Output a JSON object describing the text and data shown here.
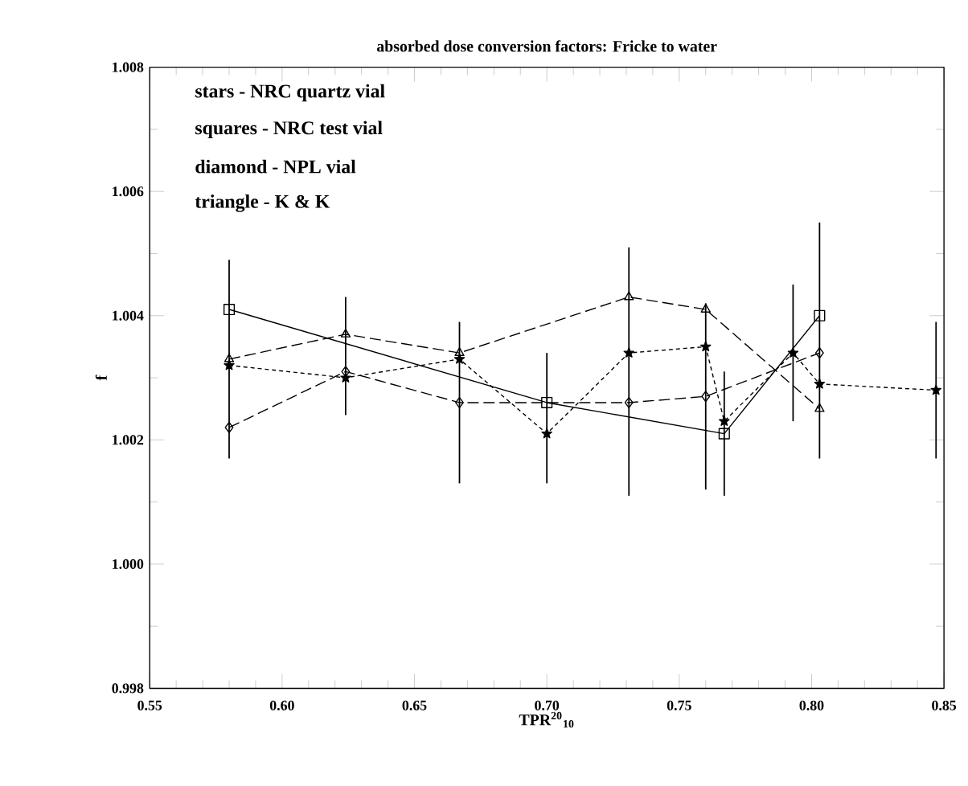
{
  "chart_data": {
    "type": "line",
    "title": "absorbed dose conversion factors: Fricke to water",
    "xlabel": "TPR$^{20}$$_{10}$",
    "ylabel": "f",
    "xlim": [
      0.55,
      0.85
    ],
    "ylim": [
      0.998,
      1.008
    ],
    "xticks": [
      {
        "value": 0.55,
        "label": "0.55"
      },
      {
        "value": 0.6,
        "label": "0.60"
      },
      {
        "value": 0.65,
        "label": "0.65"
      },
      {
        "value": 0.7,
        "label": "0.70"
      },
      {
        "value": 0.75,
        "label": "0.75"
      },
      {
        "value": 0.8,
        "label": "0.80"
      },
      {
        "value": 0.85,
        "label": "0.85"
      }
    ],
    "yticks": [
      {
        "value": 0.998,
        "label": "0.998"
      },
      {
        "value": 1.0,
        "label": "1.000"
      },
      {
        "value": 1.002,
        "label": "1.002"
      },
      {
        "value": 1.004,
        "label": "1.004"
      },
      {
        "value": 1.006,
        "label": "1.006"
      },
      {
        "value": 1.008,
        "label": "1.008"
      }
    ],
    "annotations": [
      "stars - NRC quartz vial",
      "squares - NRC test vial",
      "diamond - NPL vial",
      "triangle - K & K"
    ],
    "series": [
      {
        "color": "#000000",
        "marker": "star",
        "line_style": "dotted",
        "x": [
          0.58,
          0.624,
          0.667,
          0.7,
          0.731,
          0.76,
          0.767,
          0.793,
          0.803,
          0.847
        ],
        "values": [
          1.0032,
          1.003,
          1.0033,
          1.0021,
          1.0034,
          1.0035,
          1.0023,
          1.0034,
          1.0029,
          1.0028
        ],
        "errors": [
          null,
          [
            1.0024,
            1.0043
          ],
          null,
          [
            1.0013,
            1.0034
          ],
          null,
          null,
          null,
          0.0011,
          null,
          0.0011
        ]
      },
      {
        "color": "#000000",
        "marker": "square",
        "line_style": "solid",
        "x": [
          0.58,
          0.7,
          0.767,
          0.803
        ],
        "values": [
          1.0041,
          1.0026,
          1.0021,
          1.004
        ],
        "errors": [
          null,
          null,
          0.001,
          [
            1.0017,
            1.0055
          ]
        ]
      },
      {
        "color": "#000000",
        "marker": "diamond",
        "line_style": "dashed",
        "x": [
          0.58,
          0.624,
          0.667,
          0.731,
          0.76,
          0.803
        ],
        "values": [
          1.0022,
          1.0031,
          1.0026,
          1.0026,
          1.0027,
          1.0034
        ],
        "errors": [
          null,
          null,
          0.0013,
          [
            1.0011,
            1.0051
          ],
          0.0015,
          null
        ]
      },
      {
        "color": "#000000",
        "marker": "triangle",
        "line_style": "dashed",
        "x": [
          0.58,
          0.624,
          0.667,
          0.731,
          0.76,
          0.803
        ],
        "values": [
          1.0033,
          1.0037,
          1.0034,
          1.0043,
          1.0041,
          1.0025
        ],
        "errors": [
          0.0016,
          null,
          null,
          null,
          null,
          null
        ]
      }
    ]
  }
}
